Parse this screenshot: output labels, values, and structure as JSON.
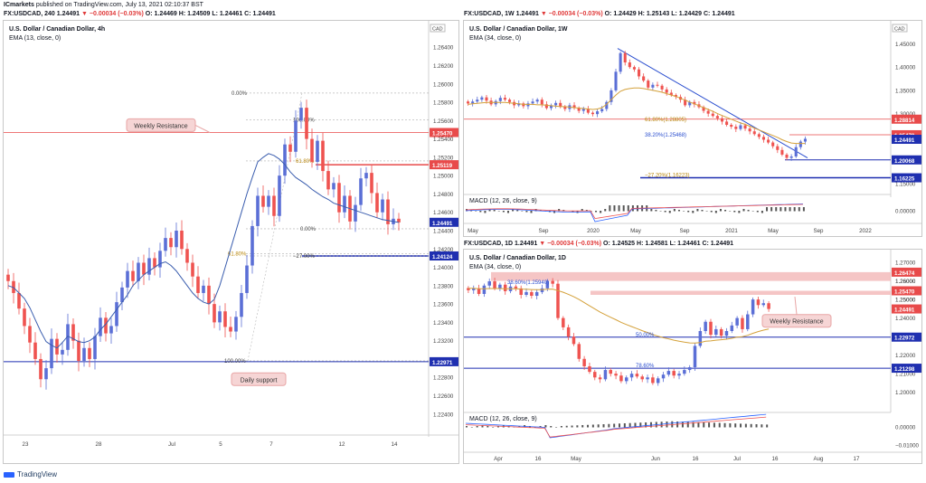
{
  "header": {
    "publisher": "ICmarkets",
    "published": "published on TradingView.com, July 13, 2021 02:10:37 BST"
  },
  "footer": {
    "brand": "TradingView"
  },
  "colors": {
    "bull": "#ef5350",
    "bear": "#5b6fd6",
    "ema_4h": "#3a5dae",
    "ema_other": "#d4a13a",
    "trend": "#2a4ecf",
    "resistance": "#e84a4a",
    "support": "#1f2fb0",
    "fib": "#999999",
    "macd": "#2962ff",
    "signal": "#ef5350"
  },
  "panels": {
    "left": {
      "symbol": "FX:USDCAD, 240",
      "ohlc": {
        "last": "1.24491",
        "chg": "▼ −0.00034 (−0.03%)",
        "o": "O: 1.24469",
        "h": "H: 1.24509",
        "l": "L: 1.24461",
        "c": "C: 1.24491"
      },
      "title": "U.S. Dollar / Canadian Dollar, 4h",
      "indicator": "EMA (13, close, 0)",
      "currency": "CAD",
      "annotations": {
        "resistance": "Weekly Resistance",
        "support": "Daily support"
      },
      "fib": [
        "0.00%",
        "100.00%",
        "61.80%",
        "0.00%",
        "61.80%",
        "−27.00%",
        "100.00%"
      ]
    },
    "topright": {
      "symbol": "FX:USDCAD, 1W",
      "ohlc": {
        "last": "1.24491",
        "chg": "▼ −0.00034 (−0.03%)",
        "o": "O: 1.24429",
        "h": "H: 1.25143",
        "l": "L: 1.24429",
        "c": "C: 1.24491"
      },
      "title": "U.S. Dollar / Canadian Dollar, 1W",
      "indicator": "EMA (34, close, 0)",
      "currency": "CAD",
      "macd_label": "MACD (12, 26, close, 9)",
      "fib": [
        "61.80%(1.28805)",
        "38.20%(1.25468)",
        "−27.20%(1.16223)"
      ]
    },
    "bottomright": {
      "symbol": "FX:USDCAD, 1D",
      "ohlc": {
        "last": "1.24491",
        "chg": "▼ −0.00034 (−0.03%)",
        "o": "O: 1.24525",
        "h": "H: 1.24581",
        "l": "L: 1.24461",
        "c": "C: 1.24491"
      },
      "title": "U.S. Dollar / Canadian Dollar, 1D",
      "indicator": "EMA (34, close, 0)",
      "macd_label": "MACD (12, 26, close, 9)",
      "annotations": {
        "resistance": "Weekly Resistance"
      },
      "fib": [
        "38.60%(1.25940)",
        "50.00%",
        "78.60%"
      ]
    }
  },
  "chart_data": [
    {
      "id": "left",
      "type": "candlestick",
      "title": "U.S. Dollar / Canadian Dollar, 4h",
      "ylim": [
        1.2225,
        1.2655
      ],
      "yticks": [
        "1.26400",
        "1.26200",
        "1.26000",
        "1.25800",
        "1.25600",
        "1.25400",
        "1.25200",
        "1.25000",
        "1.24800",
        "1.24600",
        "1.24400",
        "1.24200",
        "1.24000",
        "1.23800",
        "1.23600",
        "1.23400",
        "1.23200",
        "1.23000",
        "1.22800",
        "1.22600",
        "1.22400"
      ],
      "xticks": [
        "23",
        "28",
        "Jul",
        "5",
        "7",
        "12",
        "14"
      ],
      "closes": [
        1.2385,
        1.2372,
        1.2355,
        1.2336,
        1.2318,
        1.23,
        1.2278,
        1.229,
        1.2322,
        1.2305,
        1.231,
        1.2338,
        1.232,
        1.2298,
        1.2312,
        1.23,
        1.2325,
        1.2345,
        1.2328,
        1.2336,
        1.2362,
        1.2378,
        1.2396,
        1.2385,
        1.2405,
        1.2392,
        1.241,
        1.24,
        1.2418,
        1.2432,
        1.2422,
        1.244,
        1.242,
        1.2405,
        1.239,
        1.2372,
        1.238,
        1.236,
        1.234,
        1.2352,
        1.2335,
        1.233,
        1.2346,
        1.2372,
        1.2402,
        1.2445,
        1.2478,
        1.2466,
        1.2478,
        1.2456,
        1.25,
        1.2534,
        1.2526,
        1.256,
        1.2574,
        1.254,
        1.2515,
        1.2538,
        1.2505,
        1.2485,
        1.2492,
        1.246,
        1.2478,
        1.245,
        1.2468,
        1.2497,
        1.2503,
        1.2481,
        1.246,
        1.2474,
        1.2447,
        1.2453,
        1.2449
      ],
      "ema": [
        1.238,
        1.2378,
        1.2372,
        1.2366,
        1.2356,
        1.2343,
        1.233,
        1.2319,
        1.2315,
        1.2312,
        1.2318,
        1.2325,
        1.2322,
        1.2319,
        1.2318,
        1.232,
        1.2324,
        1.2332,
        1.2338,
        1.2346,
        1.2354,
        1.2362,
        1.237,
        1.238,
        1.2386,
        1.2392,
        1.2396,
        1.24,
        1.2404,
        1.2406,
        1.2402,
        1.2396,
        1.2388,
        1.238,
        1.2372,
        1.2366,
        1.2362,
        1.236,
        1.2365,
        1.238,
        1.24,
        1.242,
        1.244,
        1.246,
        1.248,
        1.2498,
        1.2515,
        1.252,
        1.2524,
        1.2522,
        1.2518,
        1.2512,
        1.2504,
        1.2498,
        1.2494,
        1.249,
        1.2485,
        1.2481,
        1.2477,
        1.2474,
        1.247,
        1.2468,
        1.2466,
        1.2464,
        1.2462,
        1.246,
        1.2458,
        1.2456,
        1.2454,
        1.2452,
        1.2451,
        1.245,
        1.2449
      ],
      "hlines": [
        {
          "value": 1.2547,
          "label": "1.25470",
          "color": "#e84a4a"
        },
        {
          "value": 1.25119,
          "label": "1.25119",
          "color": "#e84a4a"
        },
        {
          "value": 1.24491,
          "label": "1.24491",
          "color": "#1f2fb0"
        },
        {
          "value": 1.24124,
          "label": "1.24124",
          "color": "#1f2fb0"
        },
        {
          "value": 1.22971,
          "label": "1.22971",
          "color": "#1f2fb0"
        }
      ]
    },
    {
      "id": "weekly",
      "type": "candlestick",
      "title": "U.S. Dollar / Canadian Dollar, 1W",
      "ylim": [
        1.14,
        1.48
      ],
      "yticks": [
        "1.45000",
        "1.40000",
        "1.35000",
        "1.30000",
        "1.25000",
        "1.20000",
        "1.15000"
      ],
      "xticks": [
        "May",
        "Sep",
        "2020",
        "May",
        "Sep",
        "2021",
        "May",
        "Sep",
        "2022"
      ],
      "closes": [
        1.322,
        1.326,
        1.33,
        1.335,
        1.328,
        1.32,
        1.327,
        1.334,
        1.33,
        1.325,
        1.318,
        1.322,
        1.316,
        1.322,
        1.326,
        1.33,
        1.32,
        1.312,
        1.318,
        1.323,
        1.315,
        1.31,
        1.318,
        1.312,
        1.306,
        1.31,
        1.302,
        1.299,
        1.305,
        1.31,
        1.325,
        1.35,
        1.39,
        1.43,
        1.41,
        1.4,
        1.395,
        1.38,
        1.371,
        1.356,
        1.362,
        1.36,
        1.352,
        1.345,
        1.34,
        1.336,
        1.33,
        1.318,
        1.325,
        1.32,
        1.314,
        1.306,
        1.3,
        1.295,
        1.29,
        1.283,
        1.276,
        1.272,
        1.267,
        1.275,
        1.268,
        1.262,
        1.256,
        1.25,
        1.244,
        1.238,
        1.23,
        1.222,
        1.212,
        1.205,
        1.208,
        1.228,
        1.24,
        1.246
      ],
      "ema": [
        1.32,
        1.321,
        1.322,
        1.323,
        1.324,
        1.324,
        1.324,
        1.324,
        1.324,
        1.323,
        1.322,
        1.321,
        1.32,
        1.32,
        1.32,
        1.319,
        1.319,
        1.318,
        1.317,
        1.316,
        1.315,
        1.315,
        1.314,
        1.313,
        1.312,
        1.311,
        1.31,
        1.309,
        1.31,
        1.313,
        1.32,
        1.33,
        1.34,
        1.348,
        1.352,
        1.354,
        1.355,
        1.355,
        1.354,
        1.352,
        1.35,
        1.348,
        1.346,
        1.343,
        1.34,
        1.337,
        1.333,
        1.329,
        1.325,
        1.321,
        1.317,
        1.313,
        1.309,
        1.305,
        1.3,
        1.296,
        1.292,
        1.288,
        1.284,
        1.28,
        1.277,
        1.273,
        1.269,
        1.265,
        1.261,
        1.257,
        1.253,
        1.249,
        1.244,
        1.24,
        1.237,
        1.236,
        1.236,
        1.236
      ],
      "hlines": [
        {
          "value": 1.28814,
          "label": "1.28814",
          "color": "#e84a4a"
        },
        {
          "value": 1.2547,
          "label": "1.25470",
          "color": "#e84a4a"
        },
        {
          "value": 1.24491,
          "label": "1.24491",
          "color": "#1f2fb0"
        },
        {
          "value": 1.20068,
          "label": "1.20068",
          "color": "#1f2fb0"
        },
        {
          "value": 1.16225,
          "label": "1.16225",
          "color": "#1f2fb0"
        }
      ],
      "macd_yticks": [
        "0.00000"
      ]
    },
    {
      "id": "daily",
      "type": "candlestick",
      "title": "U.S. Dollar / Canadian Dollar, 1D",
      "ylim": [
        1.194,
        1.272
      ],
      "yticks": [
        "1.27000",
        "1.26000",
        "1.25000",
        "1.24000",
        "1.23000",
        "1.22000",
        "1.21000",
        "1.20000"
      ],
      "xticks": [
        "Apr",
        "16",
        "May",
        "Jun",
        "16",
        "Jul",
        "16",
        "Aug",
        "17"
      ],
      "closes": [
        1.255,
        1.256,
        1.253,
        1.2575,
        1.2598,
        1.256,
        1.258,
        1.2545,
        1.257,
        1.256,
        1.2525,
        1.254,
        1.252,
        1.254,
        1.256,
        1.26,
        1.2585,
        1.24,
        1.235,
        1.23,
        1.226,
        1.218,
        1.214,
        1.211,
        1.208,
        1.207,
        1.212,
        1.21,
        1.209,
        1.206,
        1.208,
        1.21,
        1.2085,
        1.207,
        1.208,
        1.205,
        1.2075,
        1.2095,
        1.2115,
        1.209,
        1.21,
        1.212,
        1.2135,
        1.225,
        1.233,
        1.238,
        1.231,
        1.234,
        1.2305,
        1.233,
        1.236,
        1.24,
        1.234,
        1.242,
        1.25,
        1.247,
        1.248,
        1.2449
      ],
      "ema": [
        1.256,
        1.256,
        1.2558,
        1.2558,
        1.2559,
        1.2559,
        1.2559,
        1.2558,
        1.2558,
        1.2558,
        1.2556,
        1.2555,
        1.2554,
        1.2553,
        1.2553,
        1.2555,
        1.2556,
        1.2548,
        1.2539,
        1.2528,
        1.2515,
        1.25,
        1.2483,
        1.2466,
        1.2449,
        1.2432,
        1.2418,
        1.2404,
        1.2391,
        1.2377,
        1.2365,
        1.2354,
        1.2343,
        1.2332,
        1.2322,
        1.2311,
        1.2302,
        1.2294,
        1.2288,
        1.2281,
        1.2275,
        1.227,
        1.2266,
        1.2265,
        1.2268,
        1.2275,
        1.2277,
        1.2281,
        1.2283,
        1.2286,
        1.2291,
        1.2297,
        1.23,
        1.2307,
        1.2318,
        1.2327,
        1.2335,
        1.2341
      ],
      "hlines": [
        {
          "value": 1.26474,
          "label": "1.26474",
          "color": "#e84a4a"
        },
        {
          "value": 1.2547,
          "label": "1.25470",
          "color": "#e84a4a"
        },
        {
          "value": 1.24491,
          "label": "1.24491",
          "color": "#e84a4a"
        },
        {
          "value": 1.22972,
          "label": "1.22972",
          "color": "#1f2fb0"
        },
        {
          "value": 1.21298,
          "label": "1.21298",
          "color": "#1f2fb0"
        }
      ],
      "extra_yticks": [
        "1.26000",
        "1.25000"
      ],
      "macd_yticks": [
        "0.00000",
        "−0.01000"
      ]
    }
  ]
}
